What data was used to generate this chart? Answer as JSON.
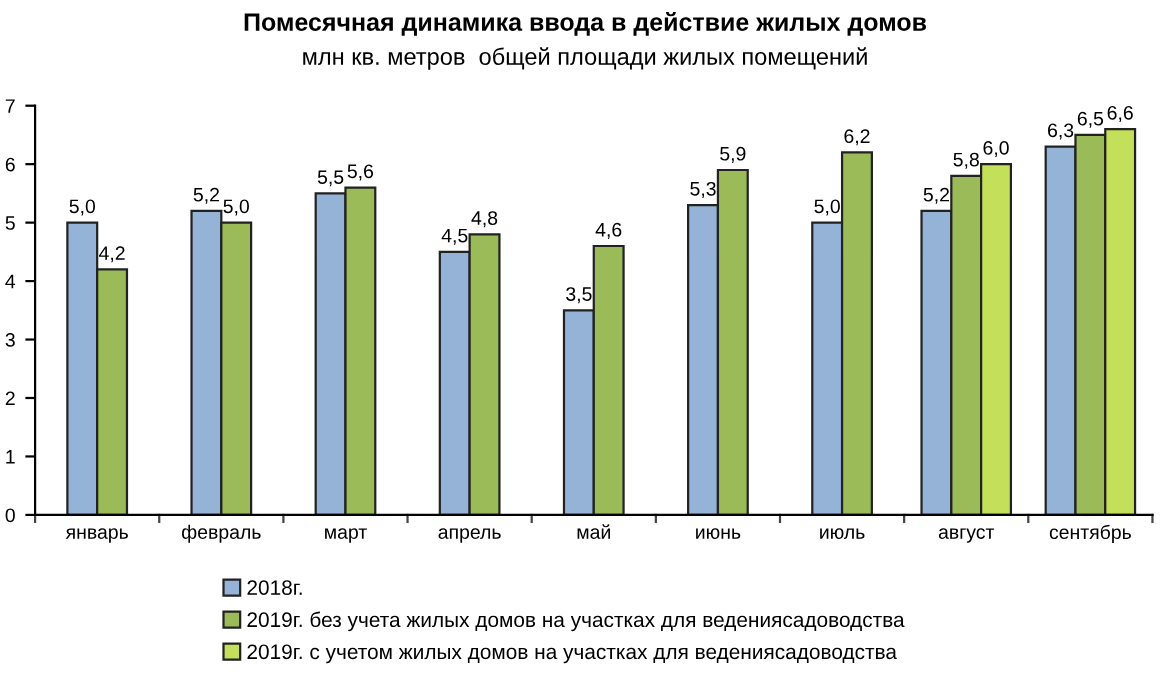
{
  "chart_data": {
    "type": "bar",
    "title": "Помесячная динамика ввода в действие жилых домов",
    "subtitle": "млн кв. метров  общей площади жилых помещений",
    "categories": [
      "январь",
      "февраль",
      "март",
      "апрель",
      "май",
      "июнь",
      "июль",
      "август",
      "сентябрь"
    ],
    "series": [
      {
        "name": "2018г.",
        "color": "#95b3d7",
        "values": [
          5.0,
          5.2,
          5.5,
          4.5,
          3.5,
          5.3,
          5.0,
          5.2,
          6.3
        ],
        "value_labels": [
          "5,0",
          "5,2",
          "5,5",
          "4,5",
          "3,5",
          "5,3",
          "5,0",
          "5,2",
          "6,3"
        ]
      },
      {
        "name": "2019г. без учета жилых домов на участках для ведениясадоводства",
        "color": "#9bbb59",
        "values": [
          4.2,
          5.0,
          5.6,
          4.8,
          4.6,
          5.9,
          6.2,
          5.8,
          6.5
        ],
        "value_labels": [
          "4,2",
          "5,0",
          "5,6",
          "4,8",
          "4,6",
          "5,9",
          "6,2",
          "5,8",
          "6,5"
        ]
      },
      {
        "name": "2019г. с учетом жилых домов на участках для ведениясадоводства",
        "color": "#c4e05a",
        "values": [
          null,
          null,
          null,
          null,
          null,
          null,
          null,
          6.0,
          6.6
        ],
        "value_labels": [
          null,
          null,
          null,
          null,
          null,
          null,
          null,
          "6,0",
          "6,6"
        ]
      }
    ],
    "ylim": [
      0,
      7
    ],
    "yticks": [
      0,
      1,
      2,
      3,
      4,
      5,
      6,
      7
    ],
    "grid": false,
    "legend": "bottom"
  }
}
